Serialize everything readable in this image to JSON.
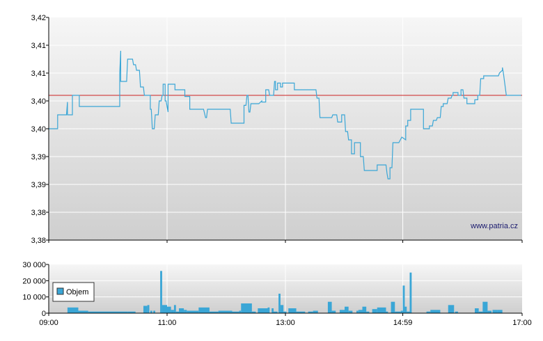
{
  "watermark": "www.patria.cz",
  "chart_data": [
    {
      "type": "line",
      "xlim_minutes": [
        540,
        1020
      ],
      "ylim": [
        3.38,
        3.42
      ],
      "ytick_labels": [
        "3,42",
        "3,41",
        "3,41",
        "3,40",
        "3,40",
        "3,39",
        "3,39",
        "3,38",
        "3,38"
      ],
      "grid": true,
      "reference_line": {
        "value": 3.406,
        "color": "#cc2222"
      },
      "series_color": "#3aa6d6",
      "series": [
        {
          "points": [
            [
              540,
              3.4
            ],
            [
              549,
              3.4
            ],
            [
              549,
              3.4025
            ],
            [
              558,
              3.4025
            ],
            [
              559,
              3.4048
            ],
            [
              559,
              3.4025
            ],
            [
              564,
              3.4025
            ],
            [
              564,
              3.406
            ],
            [
              571,
              3.406
            ],
            [
              571,
              3.404
            ],
            [
              612,
              3.404
            ],
            [
              612,
              3.41
            ],
            [
              613,
              3.414
            ],
            [
              613,
              3.4085
            ],
            [
              616,
              3.4085
            ],
            [
              619,
              3.4085
            ],
            [
              620,
              3.4125
            ],
            [
              625,
              3.4125
            ],
            [
              626,
              3.4115
            ],
            [
              628,
              3.4115
            ],
            [
              629,
              3.4105
            ],
            [
              632,
              3.4105
            ],
            [
              633,
              3.4075
            ],
            [
              636,
              3.4075
            ],
            [
              637,
              3.406
            ],
            [
              640,
              3.406
            ],
            [
              643,
              3.406
            ],
            [
              643,
              3.4035
            ],
            [
              644,
              3.4035
            ],
            [
              645,
              3.4
            ],
            [
              647,
              3.4
            ],
            [
              648,
              3.4025
            ],
            [
              651,
              3.4025
            ],
            [
              652,
              3.405
            ],
            [
              654,
              3.405
            ],
            [
              655,
              3.406
            ],
            [
              656,
              3.406
            ],
            [
              656,
              3.408
            ],
            [
              658,
              3.408
            ],
            [
              658,
              3.405
            ],
            [
              659,
              3.405
            ],
            [
              661,
              3.403
            ],
            [
              661,
              3.408
            ],
            [
              668,
              3.408
            ],
            [
              668,
              3.407
            ],
            [
              678,
              3.407
            ],
            [
              678,
              3.4058
            ],
            [
              683,
              3.4058
            ],
            [
              683,
              3.4035
            ],
            [
              697,
              3.4035
            ],
            [
              699,
              3.402
            ],
            [
              700,
              3.402
            ],
            [
              701,
              3.4035
            ],
            [
              724,
              3.4035
            ],
            [
              725,
              3.401
            ],
            [
              738,
              3.401
            ],
            [
              738,
              3.4042
            ],
            [
              740,
              3.4042
            ],
            [
              741,
              3.406
            ],
            [
              742,
              3.406
            ],
            [
              743,
              3.403
            ],
            [
              744,
              3.403
            ],
            [
              745,
              3.4045
            ],
            [
              753,
              3.4045
            ],
            [
              756,
              3.405
            ],
            [
              756,
              3.4048
            ],
            [
              760,
              3.4048
            ],
            [
              760,
              3.407
            ],
            [
              763,
              3.407
            ],
            [
              764,
              3.406
            ],
            [
              768,
              3.406
            ],
            [
              769,
              3.4085
            ],
            [
              770,
              3.4085
            ],
            [
              770,
              3.407
            ],
            [
              772,
              3.407
            ],
            [
              772,
              3.4082
            ],
            [
              775,
              3.4082
            ],
            [
              775,
              3.4075
            ],
            [
              777,
              3.4075
            ],
            [
              777,
              3.4082
            ],
            [
              789,
              3.4082
            ],
            [
              789,
              3.407
            ],
            [
              811,
              3.407
            ],
            [
              812,
              3.4055
            ],
            [
              814,
              3.4055
            ],
            [
              815,
              3.402
            ],
            [
              827,
              3.402
            ],
            [
              828,
              3.4025
            ],
            [
              832,
              3.4025
            ],
            [
              833,
              3.4012
            ],
            [
              837,
              3.4012
            ],
            [
              837,
              3.4025
            ],
            [
              840,
              3.4025
            ],
            [
              841,
              3.3995
            ],
            [
              843,
              3.3995
            ],
            [
              844,
              3.398
            ],
            [
              847,
              3.398
            ],
            [
              847,
              3.3955
            ],
            [
              850,
              3.3955
            ],
            [
              850,
              3.3975
            ],
            [
              854,
              3.3975
            ],
            [
              856,
              3.3975
            ],
            [
              856,
              3.395
            ],
            [
              859,
              3.395
            ],
            [
              860,
              3.3925
            ],
            [
              869,
              3.3925
            ],
            [
              873,
              3.3925
            ],
            [
              873,
              3.3935
            ],
            [
              879,
              3.3935
            ],
            [
              882,
              3.3935
            ],
            [
              883,
              3.392
            ],
            [
              884,
              3.391
            ],
            [
              886,
              3.391
            ],
            [
              886,
              3.393
            ],
            [
              888,
              3.393
            ],
            [
              889,
              3.3975
            ],
            [
              895,
              3.3975
            ],
            [
              898,
              3.3985
            ],
            [
              902,
              3.398
            ],
            [
              902,
              3.4005
            ],
            [
              904,
              3.4005
            ],
            [
              904,
              3.4015
            ],
            [
              907,
              3.4015
            ],
            [
              907,
              3.4035
            ],
            [
              920,
              3.4035
            ],
            [
              920,
              3.4
            ],
            [
              926,
              3.4
            ],
            [
              926,
              3.4005
            ],
            [
              929,
              3.4005
            ],
            [
              930,
              3.4015
            ],
            [
              933,
              3.4015
            ],
            [
              934,
              3.402
            ],
            [
              937,
              3.402
            ],
            [
              938,
              3.404
            ],
            [
              940,
              3.404
            ],
            [
              940,
              3.4045
            ],
            [
              944,
              3.4045
            ],
            [
              945,
              3.4055
            ],
            [
              948,
              3.4055
            ],
            [
              949,
              3.406
            ],
            [
              950,
              3.406
            ],
            [
              950,
              3.4065
            ],
            [
              955,
              3.4065
            ],
            [
              955,
              3.406
            ],
            [
              958,
              3.406
            ],
            [
              958,
              3.407
            ],
            [
              960,
              3.407
            ],
            [
              961,
              3.4055
            ],
            [
              964,
              3.4055
            ],
            [
              964,
              3.4045
            ],
            [
              966,
              3.4045
            ],
            [
              966,
              3.4045
            ],
            [
              972,
              3.4045
            ],
            [
              972,
              3.4052
            ],
            [
              975,
              3.4052
            ],
            [
              975,
              3.406
            ],
            [
              977,
              3.406
            ],
            [
              978,
              3.409
            ],
            [
              981,
              3.409
            ],
            [
              981,
              3.4095
            ],
            [
              996,
              3.4095
            ],
            [
              997,
              3.41
            ],
            [
              1000,
              3.4105
            ],
            [
              1000,
              3.411
            ],
            [
              1001,
              3.41
            ],
            [
              1004,
              3.406
            ],
            [
              1019,
              3.406
            ]
          ]
        }
      ]
    },
    {
      "type": "bar",
      "legend": "Objem",
      "xlim_minutes": [
        540,
        1020
      ],
      "ylim": [
        0,
        30000
      ],
      "ytick_labels": [
        "30 000",
        "20 000",
        "10 000",
        "0"
      ],
      "xtick_labels": [
        {
          "label": "09:00",
          "minute": 540
        },
        {
          "label": "11:00",
          "minute": 660
        },
        {
          "label": "13:00",
          "minute": 780
        },
        {
          "label": "14:59",
          "minute": 899
        },
        {
          "label": "17:00",
          "minute": 1020
        }
      ],
      "grid": true,
      "bar_color": "#3aa6d6",
      "bars": [
        [
          559,
          570,
          3500
        ],
        [
          570,
          580,
          1500
        ],
        [
          580,
          620,
          1000
        ],
        [
          620,
          624,
          1000
        ],
        [
          624,
          628,
          1000
        ],
        [
          636,
          640,
          4500
        ],
        [
          640,
          642,
          5000
        ],
        [
          643,
          645,
          1500
        ],
        [
          646,
          648,
          1500
        ],
        [
          653,
          655,
          26000
        ],
        [
          655,
          660,
          5000
        ],
        [
          660,
          664,
          4000
        ],
        [
          664,
          667,
          2000
        ],
        [
          667,
          669,
          5000
        ],
        [
          669,
          672,
          1000
        ],
        [
          672,
          677,
          3000
        ],
        [
          677,
          680,
          2000
        ],
        [
          680,
          692,
          1500
        ],
        [
          692,
          703,
          3500
        ],
        [
          703,
          712,
          1000
        ],
        [
          712,
          726,
          1500
        ],
        [
          726,
          733,
          1000
        ],
        [
          733,
          735,
          1500
        ],
        [
          735,
          746,
          6000
        ],
        [
          746,
          750,
          1000
        ],
        [
          752,
          762,
          3000
        ],
        [
          762,
          764,
          3500
        ],
        [
          766,
          768,
          3000
        ],
        [
          768,
          772,
          1000
        ],
        [
          773,
          775,
          12000
        ],
        [
          775,
          778,
          5000
        ],
        [
          778,
          781,
          1000
        ],
        [
          783,
          791,
          3000
        ],
        [
          791,
          800,
          1000
        ],
        [
          803,
          808,
          1000
        ],
        [
          808,
          813,
          1500
        ],
        [
          823,
          827,
          7000
        ],
        [
          827,
          831,
          1500
        ],
        [
          835,
          840,
          2000
        ],
        [
          840,
          844,
          4000
        ],
        [
          844,
          848,
          1500
        ],
        [
          852,
          854,
          1500
        ],
        [
          854,
          858,
          2000
        ],
        [
          858,
          862,
          4000
        ],
        [
          862,
          865,
          1000
        ],
        [
          868,
          873,
          2500
        ],
        [
          873,
          882,
          3500
        ],
        [
          882,
          884,
          1000
        ],
        [
          887,
          891,
          7000
        ],
        [
          891,
          894,
          1000
        ],
        [
          894,
          897,
          1000
        ],
        [
          897,
          899,
          1500
        ],
        [
          899,
          901,
          17000
        ],
        [
          901,
          903,
          4000
        ],
        [
          903,
          906,
          1000
        ],
        [
          906,
          908,
          25000
        ],
        [
          923,
          927,
          1000
        ],
        [
          927,
          937,
          2000
        ],
        [
          945,
          951,
          5000
        ],
        [
          952,
          955,
          1000
        ],
        [
          972,
          976,
          3000
        ],
        [
          976,
          980,
          1000
        ],
        [
          980,
          985,
          7000
        ],
        [
          985,
          989,
          1500
        ],
        [
          990,
          995,
          2000
        ],
        [
          995,
          1000,
          2000
        ]
      ]
    }
  ]
}
